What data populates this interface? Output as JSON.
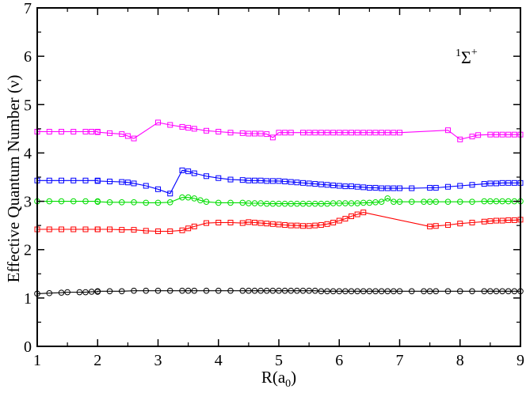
{
  "chart_data": {
    "type": "line",
    "title": "",
    "annotation": {
      "sup": "1",
      "main": "Σ",
      "sup2": "+"
    },
    "xlabel": {
      "main": "R(a",
      "sub": "0",
      "end": ")"
    },
    "ylabel": "Effective Quantum Number (ν)",
    "xlim": [
      1,
      9
    ],
    "ylim": [
      0,
      7
    ],
    "xticks": [
      1,
      2,
      3,
      4,
      5,
      6,
      7,
      8,
      9
    ],
    "yticks": [
      0,
      1,
      2,
      3,
      4,
      5,
      6,
      7
    ],
    "grid": false,
    "series": [
      {
        "name": "series-black",
        "color": "#000000",
        "marker": "circle",
        "x": [
          1.0,
          1.2,
          1.4,
          1.5,
          1.7,
          1.8,
          1.9,
          2.0,
          2.0,
          2.2,
          2.4,
          2.6,
          2.8,
          3.0,
          3.2,
          3.4,
          3.5,
          3.6,
          3.8,
          4.0,
          4.2,
          4.4,
          4.5,
          4.6,
          4.7,
          4.8,
          4.9,
          5.0,
          5.1,
          5.2,
          5.3,
          5.4,
          5.5,
          5.6,
          5.7,
          5.8,
          5.9,
          6.0,
          6.1,
          6.2,
          6.3,
          6.4,
          6.5,
          6.6,
          6.7,
          6.8,
          6.9,
          7.0,
          7.2,
          7.4,
          7.5,
          7.6,
          7.8,
          8.0,
          8.2,
          8.4,
          8.5,
          8.6,
          8.7,
          8.8,
          8.9,
          9.0
        ],
        "y": [
          1.09,
          1.1,
          1.11,
          1.12,
          1.12,
          1.12,
          1.13,
          1.13,
          1.14,
          1.14,
          1.14,
          1.15,
          1.15,
          1.15,
          1.15,
          1.15,
          1.15,
          1.15,
          1.15,
          1.15,
          1.15,
          1.15,
          1.15,
          1.15,
          1.15,
          1.15,
          1.15,
          1.15,
          1.15,
          1.15,
          1.15,
          1.15,
          1.15,
          1.15,
          1.14,
          1.14,
          1.14,
          1.14,
          1.14,
          1.14,
          1.14,
          1.14,
          1.14,
          1.14,
          1.14,
          1.14,
          1.14,
          1.14,
          1.14,
          1.14,
          1.14,
          1.14,
          1.14,
          1.14,
          1.14,
          1.14,
          1.14,
          1.14,
          1.14,
          1.14,
          1.14,
          1.14
        ]
      },
      {
        "name": "series-red",
        "color": "#ff0000",
        "marker": "square",
        "x": [
          1.0,
          1.2,
          1.4,
          1.6,
          1.8,
          2.0,
          2.0,
          2.2,
          2.4,
          2.6,
          2.8,
          3.0,
          3.2,
          3.4,
          3.5,
          3.6,
          3.8,
          4.0,
          4.2,
          4.4,
          4.5,
          4.6,
          4.7,
          4.8,
          4.9,
          5.0,
          5.1,
          5.2,
          5.3,
          5.4,
          5.5,
          5.6,
          5.7,
          5.8,
          5.9,
          6.0,
          6.1,
          6.2,
          6.3,
          6.4,
          7.5,
          7.6,
          7.8,
          8.0,
          8.2,
          8.4,
          8.5,
          8.6,
          8.7,
          8.8,
          8.9,
          9.0
        ],
        "y": [
          2.42,
          2.42,
          2.42,
          2.42,
          2.42,
          2.42,
          2.42,
          2.42,
          2.41,
          2.41,
          2.39,
          2.38,
          2.38,
          2.4,
          2.44,
          2.48,
          2.55,
          2.56,
          2.56,
          2.55,
          2.57,
          2.56,
          2.55,
          2.54,
          2.53,
          2.52,
          2.51,
          2.5,
          2.5,
          2.49,
          2.49,
          2.5,
          2.51,
          2.53,
          2.56,
          2.6,
          2.64,
          2.69,
          2.73,
          2.77,
          2.48,
          2.49,
          2.51,
          2.54,
          2.56,
          2.58,
          2.59,
          2.6,
          2.6,
          2.61,
          2.61,
          2.62
        ]
      },
      {
        "name": "series-green",
        "color": "#00dd00",
        "marker": "circle",
        "x": [
          1.0,
          1.2,
          1.4,
          1.6,
          1.8,
          2.0,
          2.0,
          2.2,
          2.4,
          2.6,
          2.8,
          3.0,
          3.2,
          3.4,
          3.5,
          3.6,
          3.7,
          3.8,
          4.0,
          4.2,
          4.4,
          4.5,
          4.6,
          4.7,
          4.8,
          4.9,
          5.0,
          5.1,
          5.2,
          5.3,
          5.4,
          5.5,
          5.6,
          5.7,
          5.8,
          5.9,
          6.0,
          6.1,
          6.2,
          6.3,
          6.4,
          6.5,
          6.6,
          6.7,
          6.8,
          6.9,
          7.0,
          7.2,
          7.4,
          7.5,
          7.6,
          7.8,
          8.0,
          8.2,
          8.4,
          8.5,
          8.6,
          8.7,
          8.8,
          8.9,
          9.0
        ],
        "y": [
          3.0,
          3.0,
          3.0,
          3.0,
          3.0,
          3.0,
          2.99,
          2.98,
          2.98,
          2.98,
          2.97,
          2.97,
          2.98,
          3.08,
          3.08,
          3.06,
          3.02,
          2.99,
          2.97,
          2.97,
          2.97,
          2.96,
          2.96,
          2.96,
          2.95,
          2.95,
          2.95,
          2.95,
          2.95,
          2.95,
          2.95,
          2.95,
          2.95,
          2.95,
          2.95,
          2.96,
          2.96,
          2.96,
          2.96,
          2.96,
          2.97,
          2.97,
          2.98,
          2.99,
          3.06,
          2.99,
          2.99,
          2.99,
          2.99,
          2.99,
          2.99,
          2.99,
          2.99,
          2.99,
          3.0,
          3.0,
          3.0,
          3.0,
          3.0,
          3.0,
          3.0
        ]
      },
      {
        "name": "series-blue",
        "color": "#0000ff",
        "marker": "square",
        "x": [
          1.0,
          1.2,
          1.4,
          1.6,
          1.8,
          2.0,
          2.0,
          2.2,
          2.4,
          2.5,
          2.6,
          2.8,
          3.0,
          3.2,
          3.4,
          3.5,
          3.6,
          3.8,
          4.0,
          4.2,
          4.4,
          4.5,
          4.6,
          4.7,
          4.8,
          4.9,
          5.0,
          5.1,
          5.2,
          5.3,
          5.4,
          5.5,
          5.6,
          5.7,
          5.8,
          5.9,
          6.0,
          6.1,
          6.2,
          6.3,
          6.4,
          6.5,
          6.6,
          6.7,
          6.8,
          6.9,
          7.0,
          7.2,
          7.5,
          7.6,
          7.8,
          8.0,
          8.2,
          8.4,
          8.5,
          8.6,
          8.7,
          8.8,
          8.9,
          9.0
        ],
        "y": [
          3.43,
          3.43,
          3.43,
          3.43,
          3.43,
          3.43,
          3.42,
          3.41,
          3.4,
          3.39,
          3.37,
          3.32,
          3.25,
          3.16,
          3.64,
          3.62,
          3.58,
          3.52,
          3.48,
          3.45,
          3.44,
          3.43,
          3.43,
          3.43,
          3.42,
          3.42,
          3.42,
          3.41,
          3.4,
          3.39,
          3.38,
          3.37,
          3.36,
          3.35,
          3.34,
          3.33,
          3.32,
          3.31,
          3.31,
          3.3,
          3.29,
          3.28,
          3.28,
          3.27,
          3.27,
          3.27,
          3.27,
          3.27,
          3.28,
          3.28,
          3.3,
          3.32,
          3.34,
          3.36,
          3.37,
          3.37,
          3.38,
          3.38,
          3.38,
          3.38
        ]
      },
      {
        "name": "series-magenta",
        "color": "#ff00ff",
        "marker": "square",
        "x": [
          1.0,
          1.2,
          1.4,
          1.6,
          1.8,
          1.9,
          2.0,
          2.0,
          2.2,
          2.4,
          2.5,
          2.6,
          3.0,
          3.2,
          3.4,
          3.5,
          3.6,
          3.8,
          4.0,
          4.2,
          4.4,
          4.5,
          4.6,
          4.7,
          4.8,
          4.9,
          5.0,
          5.1,
          5.2,
          5.4,
          5.5,
          5.6,
          5.7,
          5.8,
          5.9,
          6.0,
          6.1,
          6.2,
          6.3,
          6.4,
          6.5,
          6.6,
          6.7,
          6.8,
          6.9,
          7.0,
          7.8,
          8.0,
          8.2,
          8.3,
          8.5,
          8.6,
          8.7,
          8.8,
          8.9,
          9.0
        ],
        "y": [
          4.44,
          4.44,
          4.44,
          4.44,
          4.44,
          4.44,
          4.44,
          4.43,
          4.41,
          4.39,
          4.35,
          4.3,
          4.63,
          4.58,
          4.54,
          4.52,
          4.5,
          4.46,
          4.44,
          4.42,
          4.41,
          4.4,
          4.4,
          4.4,
          4.39,
          4.32,
          4.42,
          4.42,
          4.42,
          4.42,
          4.42,
          4.42,
          4.42,
          4.42,
          4.42,
          4.42,
          4.42,
          4.42,
          4.42,
          4.42,
          4.42,
          4.42,
          4.42,
          4.42,
          4.42,
          4.42,
          4.47,
          4.28,
          4.34,
          4.37,
          4.38,
          4.38,
          4.38,
          4.38,
          4.38,
          4.38
        ]
      }
    ]
  }
}
